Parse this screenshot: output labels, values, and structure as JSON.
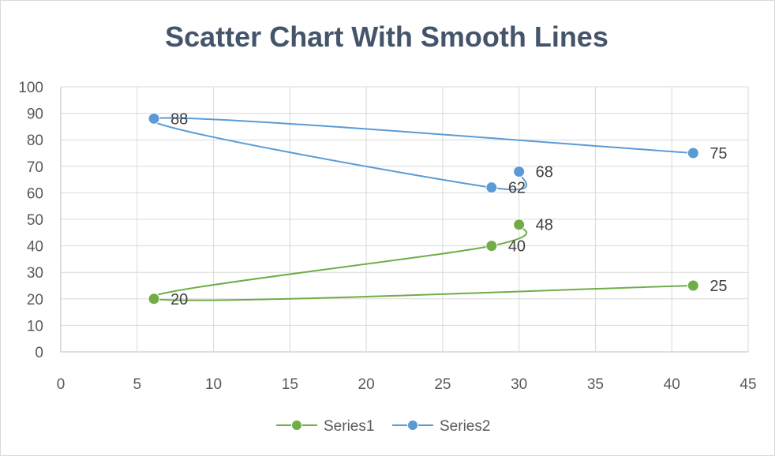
{
  "chart_data": {
    "type": "scatter",
    "title": "Scatter Chart With Smooth Lines",
    "xlabel": "",
    "ylabel": "",
    "xlim": [
      0,
      45
    ],
    "ylim": [
      0,
      100
    ],
    "x_ticks": [
      "0",
      "5",
      "10",
      "15",
      "20",
      "25",
      "30",
      "35",
      "40",
      "45"
    ],
    "y_ticks": [
      "0",
      "10",
      "20",
      "30",
      "40",
      "50",
      "60",
      "70",
      "80",
      "90",
      "100"
    ],
    "grid": true,
    "legend_position": "bottom",
    "series": [
      {
        "name": "Series1",
        "color": "#70ad47",
        "points": [
          {
            "x": 30,
            "y": 48,
            "label": "48"
          },
          {
            "x": 28.2,
            "y": 40,
            "label": "40"
          },
          {
            "x": 6.1,
            "y": 20,
            "label": "20"
          },
          {
            "x": 41.4,
            "y": 25,
            "label": "25"
          }
        ]
      },
      {
        "name": "Series2",
        "color": "#5b9bd5",
        "points": [
          {
            "x": 30,
            "y": 68,
            "label": "68"
          },
          {
            "x": 28.2,
            "y": 62,
            "label": "62"
          },
          {
            "x": 6.1,
            "y": 88,
            "label": "88"
          },
          {
            "x": 41.4,
            "y": 75,
            "label": "75"
          }
        ]
      }
    ]
  }
}
